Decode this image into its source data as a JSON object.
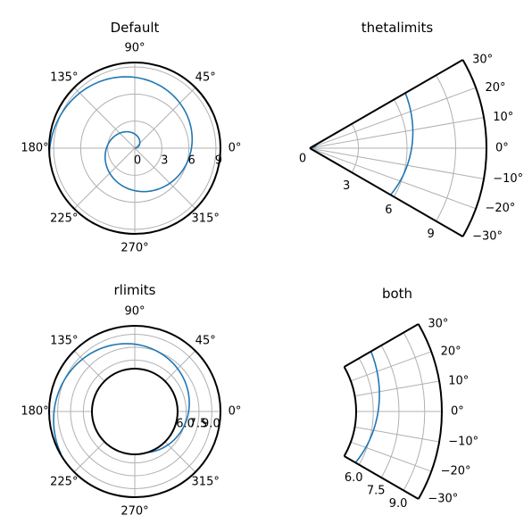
{
  "figure": {
    "colors": {
      "line": "#1f77b4",
      "grid": "#b0b0b0",
      "frame": "#000000"
    }
  },
  "chart_data": [
    {
      "type": "line",
      "subtype": "polar",
      "title": "Default",
      "series": [
        {
          "name": "spiral",
          "r_equals_theta": true,
          "theta_range_rad": [
            0,
            31.4159
          ],
          "points": 600
        }
      ],
      "rlim": [
        0,
        9.5
      ],
      "thetalim_deg": [
        0,
        360
      ],
      "theta_tick_labels": [
        "0°",
        "45°",
        "90°",
        "135°",
        "180°",
        "225°",
        "270°",
        "315°"
      ],
      "theta_ticks_deg": [
        0,
        45,
        90,
        135,
        180,
        225,
        270,
        315
      ],
      "r_ticks": [
        0,
        3,
        6,
        9
      ],
      "r_tick_labels": [
        "0",
        "3",
        "6",
        "9"
      ],
      "grid": true
    },
    {
      "type": "line",
      "subtype": "polar",
      "title": "thetalimits",
      "series": [
        {
          "name": "spiral",
          "r_equals_theta": true,
          "theta_range_rad": [
            0,
            31.4159
          ],
          "points": 600
        }
      ],
      "rlim": [
        0,
        10.9
      ],
      "thetalim_deg": [
        -30,
        30
      ],
      "theta_tick_labels": [
        "−30°",
        "−20°",
        "−10°",
        "0°",
        "10°",
        "20°",
        "30°"
      ],
      "theta_ticks_deg": [
        -30,
        -20,
        -10,
        0,
        10,
        20,
        30
      ],
      "r_ticks": [
        0,
        3,
        6,
        9
      ],
      "r_tick_labels": [
        "0",
        "3",
        "6",
        "9"
      ],
      "grid": true
    },
    {
      "type": "line",
      "subtype": "polar",
      "title": "rlimits",
      "series": [
        {
          "name": "spiral",
          "r_equals_theta": true,
          "theta_range_rad": [
            0,
            31.4159
          ],
          "points": 600
        }
      ],
      "rlim": [
        5,
        10
      ],
      "thetalim_deg": [
        0,
        360
      ],
      "theta_tick_labels": [
        "0°",
        "45°",
        "90°",
        "135°",
        "180°",
        "225°",
        "270°",
        "315°"
      ],
      "theta_ticks_deg": [
        0,
        45,
        90,
        135,
        180,
        225,
        270,
        315
      ],
      "r_ticks": [
        6.0,
        7.5,
        9.0
      ],
      "r_tick_labels": [
        "6.0",
        "7.5",
        "9.0"
      ],
      "grid": true
    },
    {
      "type": "line",
      "subtype": "polar",
      "title": "both",
      "series": [
        {
          "name": "spiral",
          "r_equals_theta": true,
          "theta_range_rad": [
            0,
            31.4159
          ],
          "points": 600
        }
      ],
      "rlim": [
        5,
        10
      ],
      "thetalim_deg": [
        -30,
        30
      ],
      "theta_tick_labels": [
        "−30°",
        "−20°",
        "−10°",
        "0°",
        "10°",
        "20°",
        "30°"
      ],
      "theta_ticks_deg": [
        -30,
        -20,
        -10,
        0,
        10,
        20,
        30
      ],
      "r_ticks": [
        6.0,
        7.5,
        9.0
      ],
      "r_tick_labels": [
        "6.0",
        "7.5",
        "9.0"
      ],
      "grid": true
    }
  ]
}
